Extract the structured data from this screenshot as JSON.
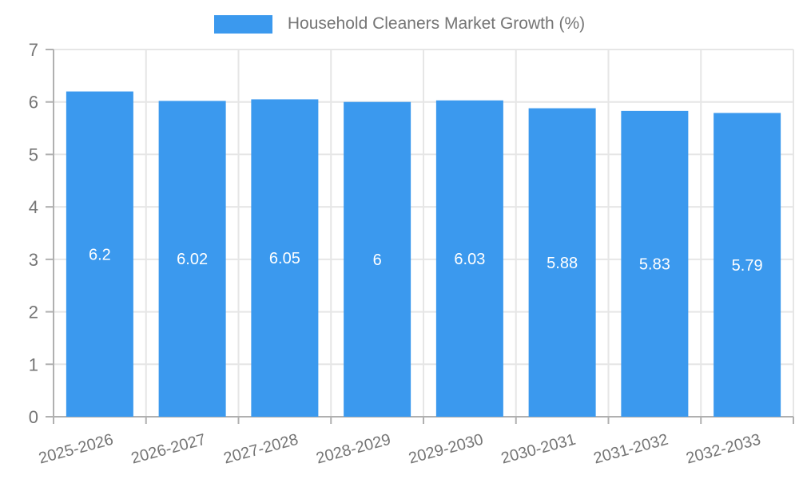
{
  "chart_data": {
    "type": "bar",
    "legend_label": "Household Cleaners Market Growth (%)",
    "categories": [
      "2025-2026",
      "2026-2027",
      "2027-2028",
      "2028-2029",
      "2029-2030",
      "2030-2031",
      "2031-2032",
      "2032-2033"
    ],
    "values": [
      6.2,
      6.02,
      6.05,
      6,
      6.03,
      5.88,
      5.83,
      5.79
    ],
    "bar_labels": [
      "6.2",
      "6.02",
      "6.05",
      "6",
      "6.03",
      "5.88",
      "5.83",
      "5.79"
    ],
    "y_ticks": [
      "0",
      "1",
      "2",
      "3",
      "4",
      "5",
      "6",
      "7"
    ],
    "ylim": [
      0,
      7
    ],
    "grid": true,
    "legend_position": "top",
    "colors": {
      "bar": "#3b99ee",
      "grid": "#e6e6e6",
      "axis": "#b0b0b0",
      "tick_label": "#757575",
      "bar_label": "#ffffff",
      "background": "#ffffff"
    }
  }
}
